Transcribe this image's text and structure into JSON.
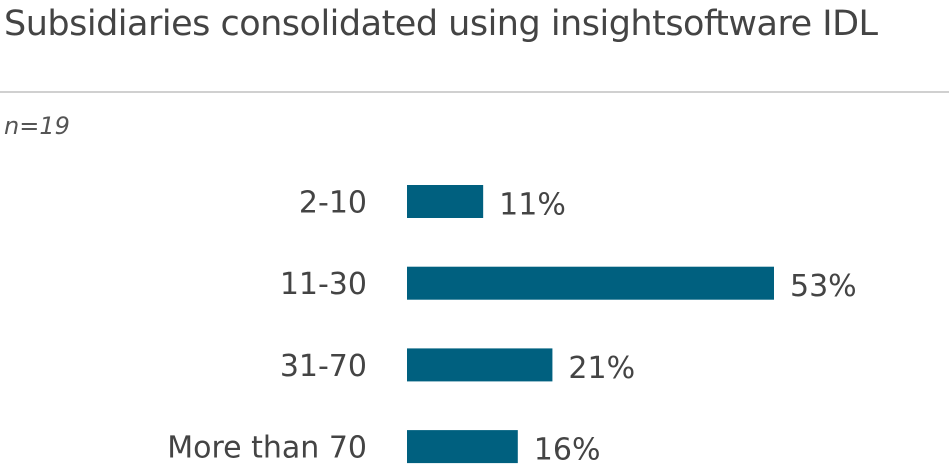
{
  "chart_data": {
    "type": "bar",
    "orientation": "horizontal",
    "title": "Subsidiaries consolidated using insightsoftware IDL",
    "subtitle": "n=19",
    "categories": [
      "2-10",
      "11-30",
      "31-70",
      "More than 70"
    ],
    "values": [
      11,
      53,
      21,
      16
    ],
    "value_labels": [
      "11%",
      "53%",
      "21%",
      "16%"
    ],
    "unit": "%",
    "xlim": [
      0,
      53
    ],
    "grid": false,
    "bar_color": "#00607f"
  }
}
